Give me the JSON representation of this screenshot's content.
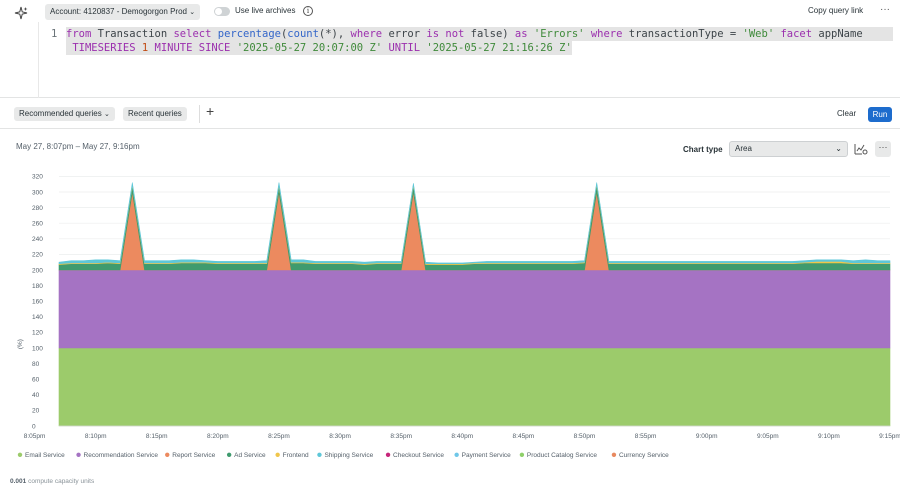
{
  "header": {
    "account_label": "Account: 4120837 - Demogorgon Prod",
    "live_archives_label": "Use live archives",
    "copy_query_label": "Copy query link",
    "more_label": "···"
  },
  "editor": {
    "line_number": "1",
    "tokens_line1": [
      {
        "t": "from",
        "c": "kw"
      },
      {
        "t": " Transaction ",
        "c": "tx"
      },
      {
        "t": "select",
        "c": "kw"
      },
      {
        "t": " ",
        "c": "tx"
      },
      {
        "t": "percentage",
        "c": "fn"
      },
      {
        "t": "(",
        "c": "tx"
      },
      {
        "t": "count",
        "c": "fn"
      },
      {
        "t": "(*), ",
        "c": "tx"
      },
      {
        "t": "where",
        "c": "kw"
      },
      {
        "t": " error ",
        "c": "tx"
      },
      {
        "t": "is",
        "c": "kw"
      },
      {
        "t": " ",
        "c": "tx"
      },
      {
        "t": "not",
        "c": "kw"
      },
      {
        "t": " false) ",
        "c": "tx"
      },
      {
        "t": "as",
        "c": "kw"
      },
      {
        "t": " ",
        "c": "tx"
      },
      {
        "t": "'Errors'",
        "c": "st"
      },
      {
        "t": " ",
        "c": "tx"
      },
      {
        "t": "where",
        "c": "kw"
      },
      {
        "t": " transactionType = ",
        "c": "tx"
      },
      {
        "t": "'Web'",
        "c": "st"
      },
      {
        "t": " ",
        "c": "tx"
      },
      {
        "t": "facet",
        "c": "kw"
      },
      {
        "t": " appName",
        "c": "tx"
      }
    ],
    "tokens_line2": [
      {
        "t": " TIMESERIES ",
        "c": "kw"
      },
      {
        "t": "1",
        "c": "nm"
      },
      {
        "t": " MINUTE ",
        "c": "kw"
      },
      {
        "t": "SINCE ",
        "c": "kw"
      },
      {
        "t": "'2025-05-27 20:07:00 Z'",
        "c": "st"
      },
      {
        "t": " ",
        "c": "tx"
      },
      {
        "t": "UNTIL",
        "c": "kw"
      },
      {
        "t": " ",
        "c": "tx"
      },
      {
        "t": "'2025-05-27 21:16:26 Z'",
        "c": "st"
      }
    ]
  },
  "toolbar": {
    "recommended_label": "Recommended queries",
    "recent_label": "Recent queries",
    "add_label": "+",
    "clear_label": "Clear",
    "run_label": "Run"
  },
  "chart_panel": {
    "time_range": "May 27, 8:07pm – May 27, 9:16pm",
    "chart_type_label": "Chart type",
    "chart_type_value": "Area",
    "more_label": "···"
  },
  "footer": {
    "compute_value": "0.001",
    "compute_label": "compute capacity units"
  },
  "chart_data": {
    "type": "area",
    "stacked": true,
    "ylabel": "(%)",
    "ylim": [
      0,
      330
    ],
    "yticks": [
      0,
      20,
      40,
      60,
      80,
      100,
      120,
      140,
      160,
      180,
      200,
      220,
      240,
      260,
      280,
      300,
      320
    ],
    "xlim": [
      7,
      75
    ],
    "xtick_values": [
      5,
      10,
      15,
      20,
      25,
      30,
      35,
      40,
      45,
      50,
      55,
      60,
      65,
      70,
      75
    ],
    "xtick_labels": [
      "8:05pm",
      "8:10pm",
      "8:15pm",
      "8:20pm",
      "8:25pm",
      "8:30pm",
      "8:35pm",
      "8:40pm",
      "8:45pm",
      "8:50pm",
      "8:55pm",
      "9:00pm",
      "9:05pm",
      "9:10pm",
      "9:15pm"
    ],
    "x_minutes_after_8pm": [
      7,
      8,
      9,
      10,
      11,
      12,
      13,
      14,
      15,
      16,
      17,
      18,
      19,
      20,
      21,
      22,
      23,
      24,
      25,
      26,
      27,
      28,
      29,
      30,
      31,
      32,
      33,
      34,
      35,
      36,
      37,
      38,
      39,
      40,
      41,
      42,
      43,
      44,
      45,
      46,
      47,
      48,
      49,
      50,
      51,
      52,
      53,
      54,
      55,
      56,
      57,
      58,
      59,
      60,
      61,
      62,
      63,
      64,
      65,
      66,
      67,
      68,
      69,
      70,
      71,
      72,
      73,
      74,
      75
    ],
    "grid": true,
    "legend_position": "bottom",
    "series": [
      {
        "name": "Email Service",
        "color": "#9ccb6b",
        "values": [
          100,
          100,
          100,
          100,
          100,
          100,
          100,
          100,
          100,
          100,
          100,
          100,
          100,
          100,
          100,
          100,
          100,
          100,
          100,
          100,
          100,
          100,
          100,
          100,
          100,
          100,
          100,
          100,
          100,
          100,
          100,
          100,
          100,
          100,
          100,
          100,
          100,
          100,
          100,
          100,
          100,
          100,
          100,
          100,
          100,
          100,
          100,
          100,
          100,
          100,
          100,
          100,
          100,
          100,
          100,
          100,
          100,
          100,
          100,
          100,
          100,
          100,
          100,
          100,
          100,
          100,
          100,
          100,
          100
        ]
      },
      {
        "name": "Recommendation Service",
        "color": "#a573c3",
        "values": [
          100,
          100,
          100,
          100,
          100,
          100,
          100,
          100,
          100,
          100,
          100,
          100,
          100,
          100,
          100,
          100,
          100,
          100,
          100,
          100,
          100,
          100,
          100,
          100,
          100,
          100,
          100,
          100,
          100,
          100,
          100,
          100,
          100,
          100,
          100,
          100,
          100,
          100,
          100,
          100,
          100,
          100,
          100,
          100,
          100,
          100,
          100,
          100,
          100,
          100,
          100,
          100,
          100,
          100,
          100,
          100,
          100,
          100,
          100,
          100,
          100,
          100,
          100,
          100,
          100,
          100,
          100,
          100,
          100
        ]
      },
      {
        "name": "Report Service",
        "color": "#ec8a5f",
        "values": [
          0,
          0,
          0,
          0,
          0,
          0,
          100,
          0,
          0,
          0,
          0,
          0,
          0,
          0,
          0,
          0,
          0,
          0,
          100,
          0,
          0,
          0,
          0,
          0,
          0,
          0,
          0,
          0,
          0,
          100,
          0,
          0,
          0,
          0,
          0,
          0,
          0,
          0,
          0,
          0,
          0,
          0,
          0,
          0,
          100,
          0,
          0,
          0,
          0,
          0,
          0,
          0,
          0,
          0,
          0,
          0,
          0,
          0,
          0,
          0,
          0,
          0,
          0,
          0,
          0,
          0,
          0,
          0,
          0
        ]
      },
      {
        "name": "Ad Service",
        "color": "#3f9b6e",
        "values": [
          7,
          8,
          8,
          8,
          9,
          8,
          8,
          8,
          8,
          8,
          9,
          9,
          9,
          8,
          8,
          8,
          8,
          8,
          8,
          9,
          9,
          8,
          8,
          8,
          8,
          7,
          8,
          8,
          8,
          8,
          7,
          7,
          7,
          7,
          8,
          8,
          8,
          8,
          8,
          8,
          8,
          8,
          8,
          9,
          9,
          8,
          8,
          8,
          8,
          8,
          8,
          8,
          8,
          8,
          8,
          8,
          8,
          8,
          8,
          8,
          8,
          9,
          9,
          9,
          9,
          8,
          8,
          8,
          8
        ]
      },
      {
        "name": "Frontend",
        "color": "#f0c64b",
        "values": [
          1,
          1,
          1,
          1,
          1,
          1,
          1,
          1,
          1,
          1,
          1,
          1,
          1,
          1,
          1,
          1,
          1,
          1,
          1,
          1,
          1,
          1,
          1,
          1,
          1,
          1,
          1,
          1,
          1,
          1,
          1,
          1,
          1,
          1,
          1,
          1,
          1,
          1,
          1,
          1,
          1,
          1,
          1,
          1,
          1,
          1,
          1,
          1,
          1,
          1,
          1,
          1,
          1,
          1,
          1,
          1,
          1,
          1,
          1,
          1,
          1,
          1,
          2,
          2,
          2,
          1,
          1,
          1,
          1
        ]
      },
      {
        "name": "Shipping Service",
        "color": "#5ec7d8",
        "values": [
          2,
          3,
          3,
          4,
          3,
          3,
          3,
          3,
          3,
          3,
          3,
          3,
          2,
          2,
          2,
          2,
          2,
          3,
          3,
          3,
          3,
          2,
          2,
          2,
          2,
          2,
          2,
          2,
          2,
          2,
          2,
          1,
          1,
          1,
          1,
          2,
          2,
          2,
          2,
          2,
          2,
          2,
          2,
          2,
          2,
          2,
          2,
          2,
          2,
          2,
          2,
          2,
          2,
          2,
          2,
          2,
          2,
          2,
          2,
          2,
          2,
          2,
          2,
          2,
          2,
          3,
          4,
          3,
          3
        ]
      },
      {
        "name": "Checkout Service",
        "color": "#c6257a",
        "values": []
      },
      {
        "name": "Payment Service",
        "color": "#6fc7e8",
        "values": []
      },
      {
        "name": "Product Catalog Service",
        "color": "#8fd06a",
        "values": []
      },
      {
        "name": "Currency Service",
        "color": "#e8895f",
        "values": []
      }
    ]
  }
}
